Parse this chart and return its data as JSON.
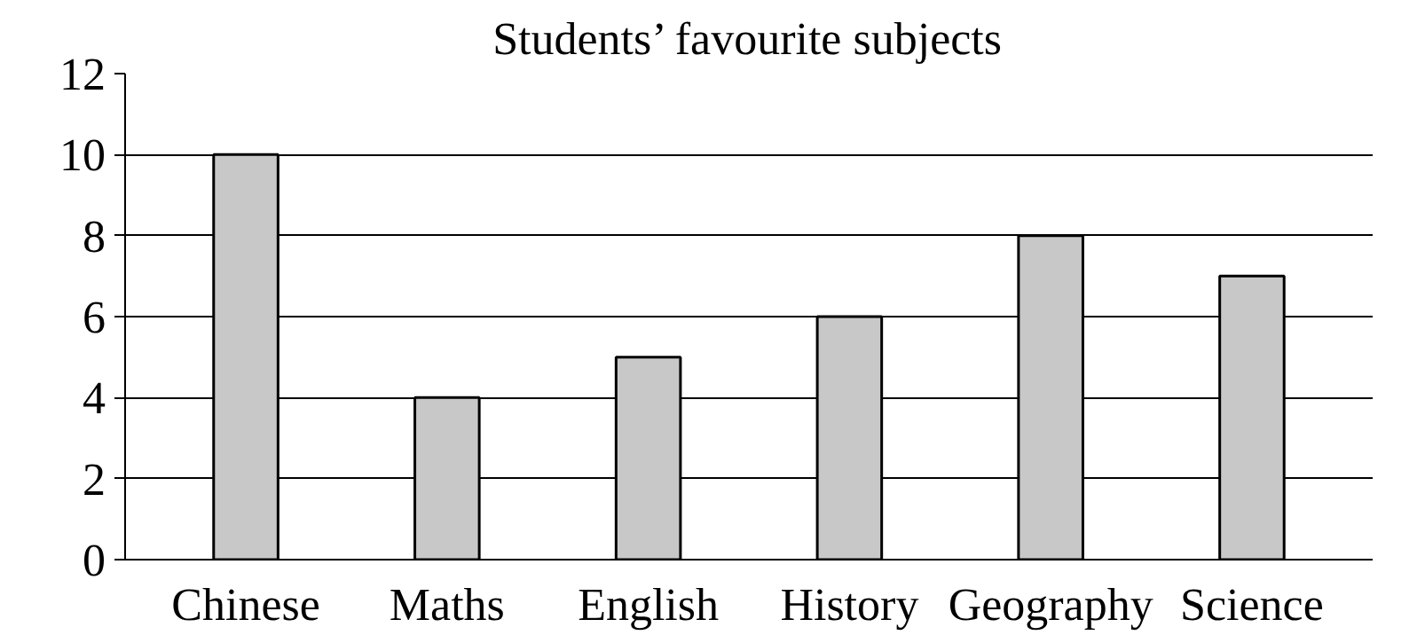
{
  "chart_data": {
    "type": "bar",
    "title": "Students’ favourite subjects",
    "categories": [
      "Chinese",
      "Maths",
      "English",
      "History",
      "Geography",
      "Science"
    ],
    "values": [
      10,
      4,
      5,
      6,
      8,
      7
    ],
    "color": "#c8c8c8",
    "ylim": [
      0,
      12
    ],
    "yticks": [
      0,
      2,
      4,
      6,
      8,
      10,
      12
    ],
    "grid": "y"
  }
}
